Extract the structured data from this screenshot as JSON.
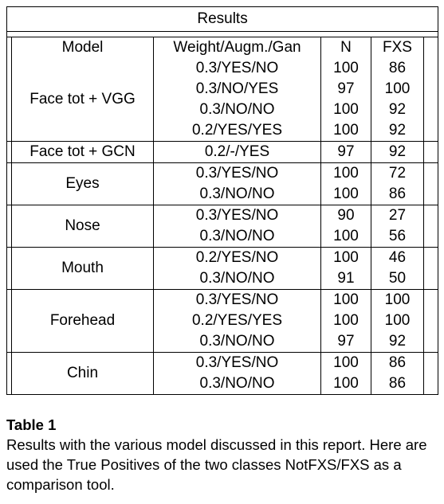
{
  "table": {
    "title": "Results",
    "headers": {
      "model": "Model",
      "config": "Weight/Augm./Gan",
      "n": "N",
      "fxs": "FXS"
    },
    "groups": [
      {
        "model": "Face tot + VGG",
        "rows": [
          {
            "config": "0.3/YES/NO",
            "n": "100",
            "fxs": "86"
          },
          {
            "config": "0.3/NO/YES",
            "n": "97",
            "fxs": "100"
          },
          {
            "config": "0.3/NO/NO",
            "n": "100",
            "fxs": "92"
          },
          {
            "config": "0.2/YES/YES",
            "n": "100",
            "fxs": "92"
          }
        ]
      },
      {
        "model": "Face tot + GCN",
        "rows": [
          {
            "config": "0.2/-/YES",
            "n": "97",
            "fxs": "92"
          }
        ]
      },
      {
        "model": "Eyes",
        "rows": [
          {
            "config": "0.3/YES/NO",
            "n": "100",
            "fxs": "72"
          },
          {
            "config": "0.3/NO/NO",
            "n": "100",
            "fxs": "86"
          }
        ]
      },
      {
        "model": "Nose",
        "rows": [
          {
            "config": "0.3/YES/NO",
            "n": "90",
            "fxs": "27"
          },
          {
            "config": "0.3/NO/NO",
            "n": "100",
            "fxs": "56"
          }
        ]
      },
      {
        "model": "Mouth",
        "rows": [
          {
            "config": "0.2/YES/NO",
            "n": "100",
            "fxs": "46"
          },
          {
            "config": "0.3/NO/NO",
            "n": "91",
            "fxs": "50"
          }
        ]
      },
      {
        "model": "Forehead",
        "rows": [
          {
            "config": "0.3/YES/NO",
            "n": "100",
            "fxs": "100"
          },
          {
            "config": "0.2/YES/YES",
            "n": "100",
            "fxs": "100"
          },
          {
            "config": "0.3/NO/NO",
            "n": "97",
            "fxs": "92"
          }
        ]
      },
      {
        "model": "Chin",
        "rows": [
          {
            "config": "0.3/YES/NO",
            "n": "100",
            "fxs": "86"
          },
          {
            "config": "0.3/NO/NO",
            "n": "100",
            "fxs": "86"
          }
        ]
      }
    ]
  },
  "caption": {
    "label": "Table 1",
    "text": "Results with the various model discussed in this report. Here are used the True Positives of the two classes NotFXS/FXS as a comparison tool."
  }
}
